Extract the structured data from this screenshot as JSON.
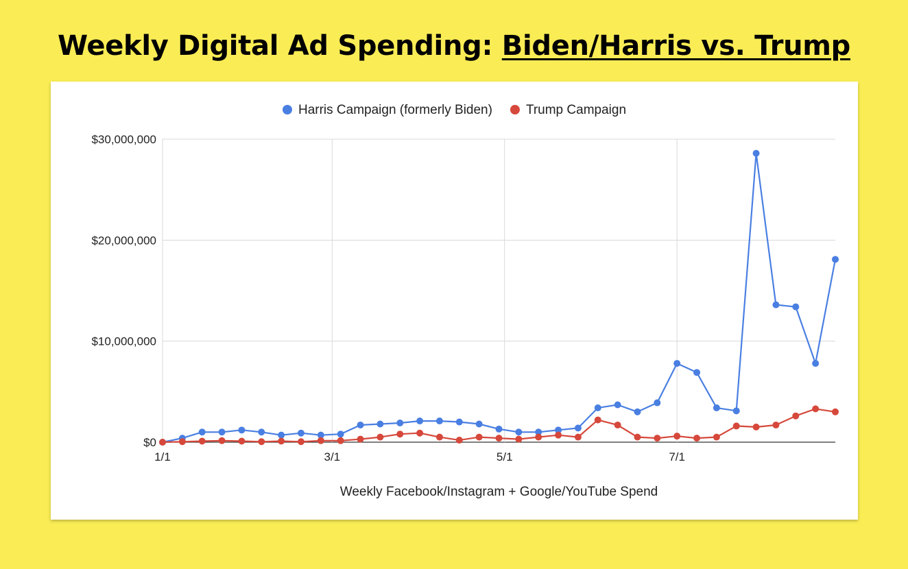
{
  "headline": {
    "prefix": "Weekly Digital Ad Spending: ",
    "emphasis": "Biden/Harris vs. Trump"
  },
  "chart_data": {
    "type": "line",
    "title": "",
    "xlabel": "Weekly Facebook/Instagram + Google/YouTube Spend",
    "ylabel": "",
    "x": [
      "2024-01-01",
      "2024-01-08",
      "2024-01-15",
      "2024-01-22",
      "2024-01-29",
      "2024-02-05",
      "2024-02-12",
      "2024-02-19",
      "2024-02-26",
      "2024-03-04",
      "2024-03-11",
      "2024-03-18",
      "2024-03-25",
      "2024-04-01",
      "2024-04-08",
      "2024-04-15",
      "2024-04-22",
      "2024-04-29",
      "2024-05-06",
      "2024-05-13",
      "2024-05-20",
      "2024-05-27",
      "2024-06-03",
      "2024-06-10",
      "2024-06-17",
      "2024-06-24",
      "2024-07-01",
      "2024-07-08",
      "2024-07-15",
      "2024-07-22",
      "2024-07-29",
      "2024-08-05",
      "2024-08-12",
      "2024-08-19",
      "2024-08-26"
    ],
    "x_ticks": [
      "1/1",
      "3/1",
      "5/1",
      "7/1"
    ],
    "x_tick_dates": [
      "2024-01-01",
      "2024-03-01",
      "2024-05-01",
      "2024-07-01"
    ],
    "y_ticks": [
      "$0",
      "$10,000,000",
      "$20,000,000",
      "$30,000,000"
    ],
    "ylim": [
      0,
      30000000
    ],
    "grid": true,
    "legend_position": "top-center",
    "series": [
      {
        "name": "Harris Campaign (formerly Biden)",
        "color": "#4a7fe2",
        "values": [
          0,
          400000,
          1000000,
          1000000,
          1200000,
          1000000,
          700000,
          900000,
          700000,
          800000,
          1700000,
          1800000,
          1900000,
          2100000,
          2100000,
          2000000,
          1800000,
          1300000,
          1000000,
          1000000,
          1200000,
          1400000,
          3400000,
          3700000,
          3000000,
          3900000,
          7800000,
          6900000,
          3400000,
          3100000,
          28600000,
          13600000,
          13400000,
          7800000,
          18100000
        ]
      },
      {
        "name": "Trump Campaign",
        "color": "#d6483b",
        "values": [
          0,
          50000,
          100000,
          150000,
          100000,
          50000,
          100000,
          50000,
          150000,
          150000,
          300000,
          500000,
          800000,
          900000,
          500000,
          200000,
          500000,
          400000,
          300000,
          500000,
          700000,
          500000,
          2200000,
          1700000,
          500000,
          400000,
          600000,
          400000,
          500000,
          1600000,
          1500000,
          1700000,
          2600000,
          3300000,
          3000000
        ]
      }
    ]
  }
}
